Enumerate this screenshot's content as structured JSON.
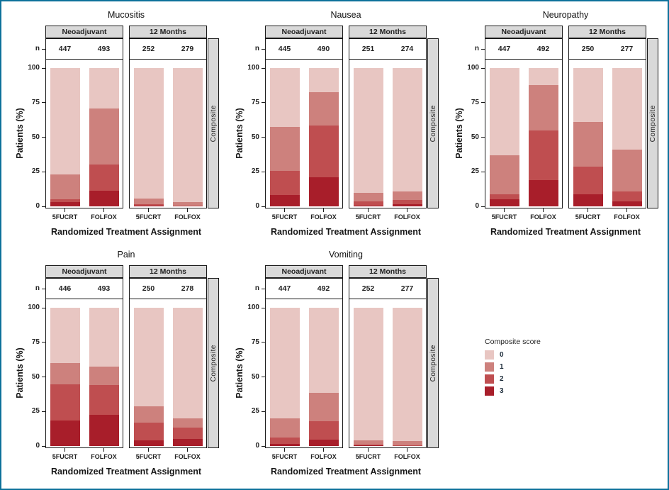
{
  "figure": {
    "frame_color": "#0d719b",
    "background": "#ffffff"
  },
  "chart_data": {
    "type": "bar",
    "stacked": true,
    "orientation": "vertical",
    "unit": "percent of patients",
    "xlabel": "Randomized Treatment Assignment",
    "ylabel": "Patients (%)",
    "ylim": [
      0,
      100
    ],
    "yticks": [
      0,
      25,
      50,
      75,
      100
    ],
    "grid": false,
    "n_row_label": "n",
    "facet_labels": [
      "Neoadjuvant",
      "12 Months"
    ],
    "group_labels": [
      "5FUCRT",
      "FOLFOX"
    ],
    "right_strip_label": "Composite",
    "stack_order_bottom_to_top": [
      "3",
      "2",
      "1",
      "0"
    ],
    "legend": {
      "title": "Composite score",
      "position": "right of bottom row",
      "entries": [
        {
          "label": "0",
          "color": "#e8c6c2"
        },
        {
          "label": "1",
          "color": "#cd817d"
        },
        {
          "label": "2",
          "color": "#bf4e50"
        },
        {
          "label": "3",
          "color": "#a81e2a"
        }
      ]
    },
    "panels": [
      {
        "title": "Mucositis",
        "facets": [
          {
            "label": "Neoadjuvant",
            "bars": [
              {
                "group": "5FUCRT",
                "n": 447,
                "pct": {
                  "0": 77,
                  "1": 18,
                  "2": 2,
                  "3": 3
                }
              },
              {
                "group": "FOLFOX",
                "n": 493,
                "pct": {
                  "0": 29,
                  "1": 40.5,
                  "2": 19,
                  "3": 11.5
                }
              }
            ]
          },
          {
            "label": "12 Months",
            "bars": [
              {
                "group": "5FUCRT",
                "n": 252,
                "pct": {
                  "0": 94.5,
                  "1": 4,
                  "2": 0.8,
                  "3": 0.7
                }
              },
              {
                "group": "FOLFOX",
                "n": 279,
                "pct": {
                  "0": 97,
                  "1": 2.5,
                  "2": 0.5,
                  "3": 0
                }
              }
            ]
          }
        ]
      },
      {
        "title": "Nausea",
        "facets": [
          {
            "label": "Neoadjuvant",
            "bars": [
              {
                "group": "5FUCRT",
                "n": 445,
                "pct": {
                  "0": 42.5,
                  "1": 32,
                  "2": 17.5,
                  "3": 8
                }
              },
              {
                "group": "FOLFOX",
                "n": 490,
                "pct": {
                  "0": 17.5,
                  "1": 24,
                  "2": 37.5,
                  "3": 21
                }
              }
            ]
          },
          {
            "label": "12 Months",
            "bars": [
              {
                "group": "5FUCRT",
                "n": 251,
                "pct": {
                  "0": 90,
                  "1": 6.5,
                  "2": 3,
                  "3": 0.5
                }
              },
              {
                "group": "FOLFOX",
                "n": 274,
                "pct": {
                  "0": 89,
                  "1": 6.5,
                  "2": 3,
                  "3": 1.5
                }
              }
            ]
          }
        ]
      },
      {
        "title": "Neuropathy",
        "facets": [
          {
            "label": "Neoadjuvant",
            "bars": [
              {
                "group": "5FUCRT",
                "n": 447,
                "pct": {
                  "0": 63,
                  "1": 28.5,
                  "2": 3.5,
                  "3": 5
                }
              },
              {
                "group": "FOLFOX",
                "n": 492,
                "pct": {
                  "0": 12.5,
                  "1": 32.5,
                  "2": 36,
                  "3": 19
                }
              }
            ]
          },
          {
            "label": "12 Months",
            "bars": [
              {
                "group": "5FUCRT",
                "n": 250,
                "pct": {
                  "0": 39,
                  "1": 32.5,
                  "2": 20,
                  "3": 8.5
                }
              },
              {
                "group": "FOLFOX",
                "n": 277,
                "pct": {
                  "0": 59,
                  "1": 30,
                  "2": 7.5,
                  "3": 3.5
                }
              }
            ]
          }
        ]
      },
      {
        "title": "Pain",
        "facets": [
          {
            "label": "Neoadjuvant",
            "bars": [
              {
                "group": "5FUCRT",
                "n": 446,
                "pct": {
                  "0": 40,
                  "1": 15.5,
                  "2": 26,
                  "3": 18.5
                }
              },
              {
                "group": "FOLFOX",
                "n": 493,
                "pct": {
                  "0": 42.5,
                  "1": 13.5,
                  "2": 21.5,
                  "3": 22.5
                }
              }
            ]
          },
          {
            "label": "12 Months",
            "bars": [
              {
                "group": "5FUCRT",
                "n": 250,
                "pct": {
                  "0": 71.5,
                  "1": 11.5,
                  "2": 13,
                  "3": 4
                }
              },
              {
                "group": "FOLFOX",
                "n": 278,
                "pct": {
                  "0": 80,
                  "1": 6.5,
                  "2": 8.5,
                  "3": 5
                }
              }
            ]
          }
        ]
      },
      {
        "title": "Vomiting",
        "facets": [
          {
            "label": "Neoadjuvant",
            "bars": [
              {
                "group": "5FUCRT",
                "n": 447,
                "pct": {
                  "0": 80,
                  "1": 14,
                  "2": 4.5,
                  "3": 1.5
                }
              },
              {
                "group": "FOLFOX",
                "n": 492,
                "pct": {
                  "0": 61.5,
                  "1": 20.5,
                  "2": 13.5,
                  "3": 4.5
                }
              }
            ]
          },
          {
            "label": "12 Months",
            "bars": [
              {
                "group": "5FUCRT",
                "n": 252,
                "pct": {
                  "0": 96,
                  "1": 3,
                  "2": 0.5,
                  "3": 0.5
                }
              },
              {
                "group": "FOLFOX",
                "n": 277,
                "pct": {
                  "0": 96.5,
                  "1": 3,
                  "2": 0.5,
                  "3": 0
                }
              }
            ]
          }
        ]
      }
    ]
  }
}
